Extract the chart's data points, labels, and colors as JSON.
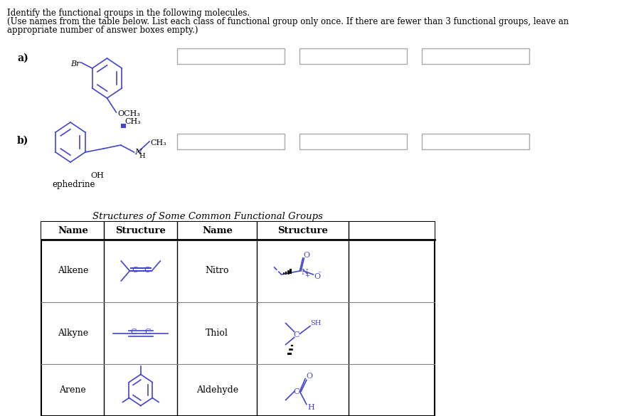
{
  "title_line1": "Identify the functional groups in the following molecules.",
  "title_line2": "(Use names from the table below. List each class of functional group only once. If there are fewer than 3 functional groups, leave an",
  "title_line3": "appropriate number of answer boxes empty.)",
  "label_a": "a)",
  "label_b": "b)",
  "ephedrine_label": "ephedrine",
  "table_title": "Structures of Some Common Functional Groups",
  "table_headers": [
    "Name",
    "Structure",
    "Name",
    "Structure"
  ],
  "table_rows": [
    {
      "name1": "Alkene",
      "name2": "Nitro"
    },
    {
      "name1": "Alkyne",
      "name2": "Thiol"
    },
    {
      "name1": "Arene",
      "name2": "Aldehyde"
    }
  ],
  "bg_color": "#ffffff",
  "text_color": "#000000",
  "box_color": "#d3d3d3",
  "mol_color": "#4444cc",
  "answer_box_color": "#e8e8e8"
}
